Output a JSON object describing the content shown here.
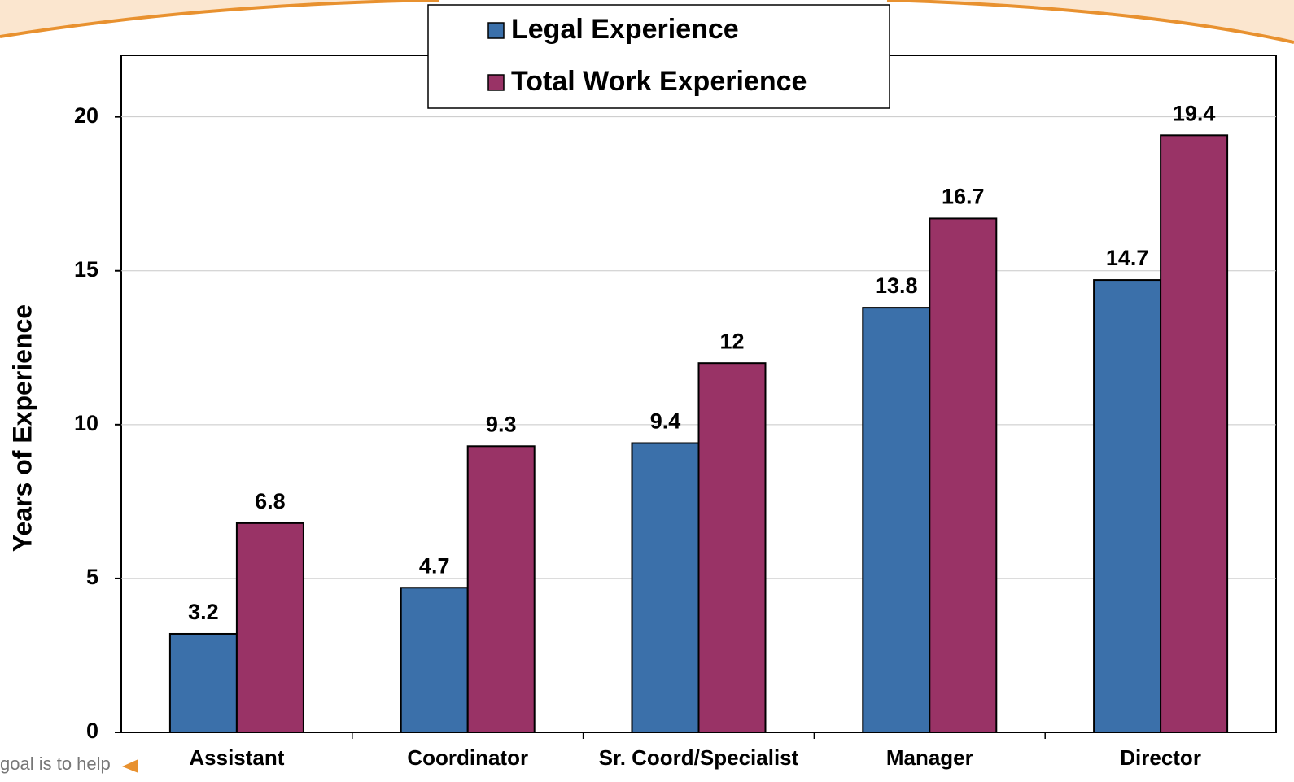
{
  "chart_data": {
    "type": "bar",
    "y_label": "Years of Experience",
    "categories": [
      "Assistant",
      "Coordinator",
      "Sr. Coord/Specialist",
      "Manager",
      "Director"
    ],
    "series": [
      {
        "name": "Legal Experience",
        "color": "#3b70aa",
        "values": [
          3.2,
          4.7,
          9.4,
          13.8,
          14.7
        ]
      },
      {
        "name": "Total Work Experience",
        "color": "#993366",
        "values": [
          6.8,
          9.3,
          12,
          16.7,
          19.4
        ]
      }
    ],
    "ylim": [
      0,
      22
    ],
    "yticks": [
      0,
      5,
      10,
      15,
      20
    ],
    "grid": true,
    "annotation": "goal is to help"
  }
}
